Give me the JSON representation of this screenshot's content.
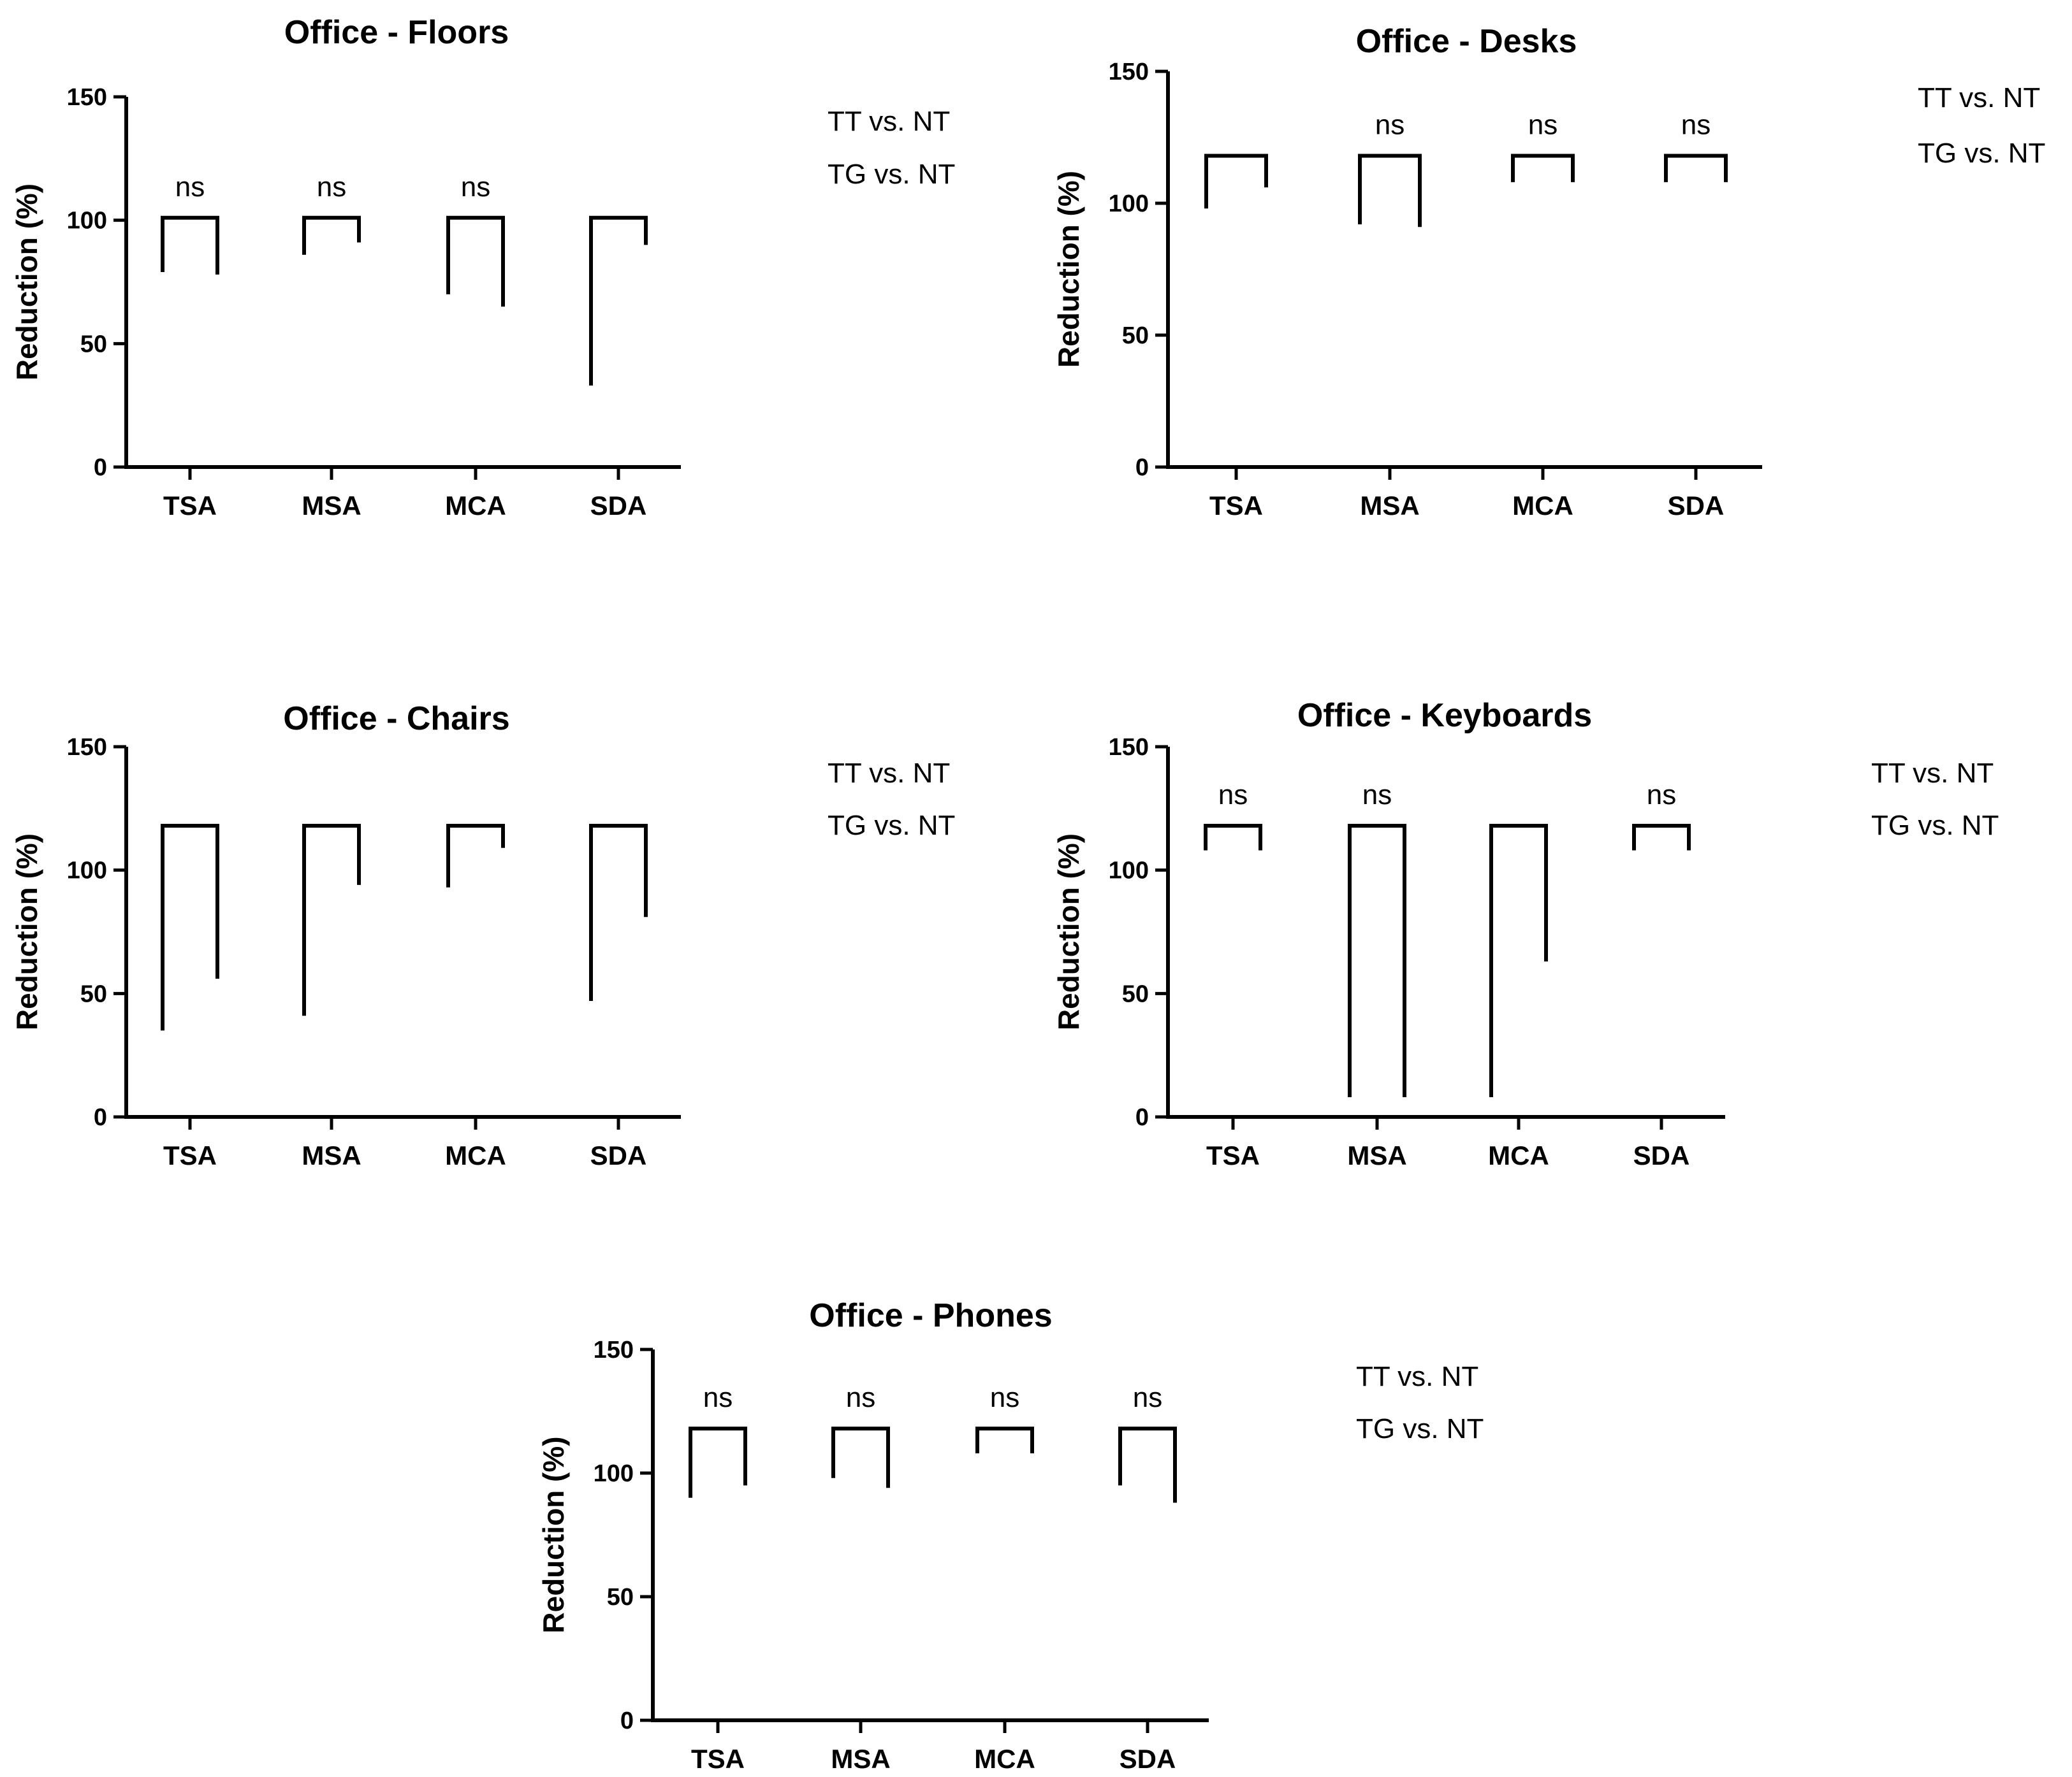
{
  "chart_data": [
    {
      "type": "bracket",
      "title": "Office - Floors",
      "ylabel": "Reduction (%)",
      "xlabel": "",
      "ylim": [
        0,
        150
      ],
      "yticks": [
        0,
        50,
        100,
        150
      ],
      "categories": [
        "TSA",
        "MSA",
        "MCA",
        "SDA"
      ],
      "legend": [
        "TT vs. NT",
        "TG vs. NT"
      ],
      "legend_position": "right",
      "brackets": [
        {
          "category": "TSA",
          "top": 101,
          "left_end": 79,
          "right_end": 78,
          "label": "ns"
        },
        {
          "category": "MSA",
          "top": 101,
          "left_end": 86,
          "right_end": 91,
          "label": "ns"
        },
        {
          "category": "MCA",
          "top": 101,
          "left_end": 70,
          "right_end": 65,
          "label": "ns"
        },
        {
          "category": "SDA",
          "top": 101,
          "left_end": 33,
          "right_end": 90,
          "label": ""
        }
      ]
    },
    {
      "type": "bracket",
      "title": "Office - Desks",
      "ylabel": "Reduction (%)",
      "xlabel": "",
      "ylim": [
        0,
        150
      ],
      "yticks": [
        0,
        50,
        100,
        150
      ],
      "categories": [
        "TSA",
        "MSA",
        "MCA",
        "SDA"
      ],
      "legend": [
        "TT vs. NT",
        "TG vs. NT"
      ],
      "legend_position": "right",
      "brackets": [
        {
          "category": "TSA",
          "top": 118,
          "left_end": 98,
          "right_end": 106,
          "label": ""
        },
        {
          "category": "MSA",
          "top": 118,
          "left_end": 92,
          "right_end": 91,
          "label": "ns"
        },
        {
          "category": "MCA",
          "top": 118,
          "left_end": 108,
          "right_end": 108,
          "label": "ns"
        },
        {
          "category": "SDA",
          "top": 118,
          "left_end": 108,
          "right_end": 108,
          "label": "ns"
        }
      ]
    },
    {
      "type": "bracket",
      "title": "Office - Chairs",
      "ylabel": "Reduction (%)",
      "xlabel": "",
      "ylim": [
        0,
        150
      ],
      "yticks": [
        0,
        50,
        100,
        150
      ],
      "categories": [
        "TSA",
        "MSA",
        "MCA",
        "SDA"
      ],
      "legend": [
        "TT vs. NT",
        "TG vs. NT"
      ],
      "legend_position": "right",
      "brackets": [
        {
          "category": "TSA",
          "top": 118,
          "left_end": 35,
          "right_end": 56,
          "label": ""
        },
        {
          "category": "MSA",
          "top": 118,
          "left_end": 41,
          "right_end": 94,
          "label": ""
        },
        {
          "category": "MCA",
          "top": 118,
          "left_end": 93,
          "right_end": 109,
          "label": ""
        },
        {
          "category": "SDA",
          "top": 118,
          "left_end": 47,
          "right_end": 81,
          "label": ""
        }
      ]
    },
    {
      "type": "bracket",
      "title": "Office - Keyboards",
      "ylabel": "Reduction (%)",
      "xlabel": "",
      "ylim": [
        0,
        150
      ],
      "yticks": [
        0,
        50,
        100,
        150
      ],
      "categories": [
        "TSA",
        "MSA",
        "MCA",
        "SDA"
      ],
      "legend": [
        "TT vs. NT",
        "TG vs. NT"
      ],
      "legend_position": "right",
      "brackets": [
        {
          "category": "TSA",
          "top": 118,
          "left_end": 108,
          "right_end": 108,
          "label": "ns"
        },
        {
          "category": "MSA",
          "top": 118,
          "left_end": 8,
          "right_end": 8,
          "label": "ns"
        },
        {
          "category": "MCA",
          "top": 118,
          "left_end": 8,
          "right_end": 63,
          "label": ""
        },
        {
          "category": "SDA",
          "top": 118,
          "left_end": 108,
          "right_end": 108,
          "label": "ns"
        }
      ]
    },
    {
      "type": "bracket",
      "title": "Office - Phones",
      "ylabel": "Reduction (%)",
      "xlabel": "",
      "ylim": [
        0,
        150
      ],
      "yticks": [
        0,
        50,
        100,
        150
      ],
      "categories": [
        "TSA",
        "MSA",
        "MCA",
        "SDA"
      ],
      "legend": [
        "TT vs. NT",
        "TG vs. NT"
      ],
      "legend_position": "right",
      "brackets": [
        {
          "category": "TSA",
          "top": 118,
          "left_end": 90,
          "right_end": 95,
          "label": "ns"
        },
        {
          "category": "MSA",
          "top": 118,
          "left_end": 98,
          "right_end": 94,
          "label": "ns"
        },
        {
          "category": "MCA",
          "top": 118,
          "left_end": 108,
          "right_end": 108,
          "label": "ns"
        },
        {
          "category": "SDA",
          "top": 118,
          "left_end": 95,
          "right_end": 88,
          "label": "ns"
        }
      ]
    }
  ]
}
